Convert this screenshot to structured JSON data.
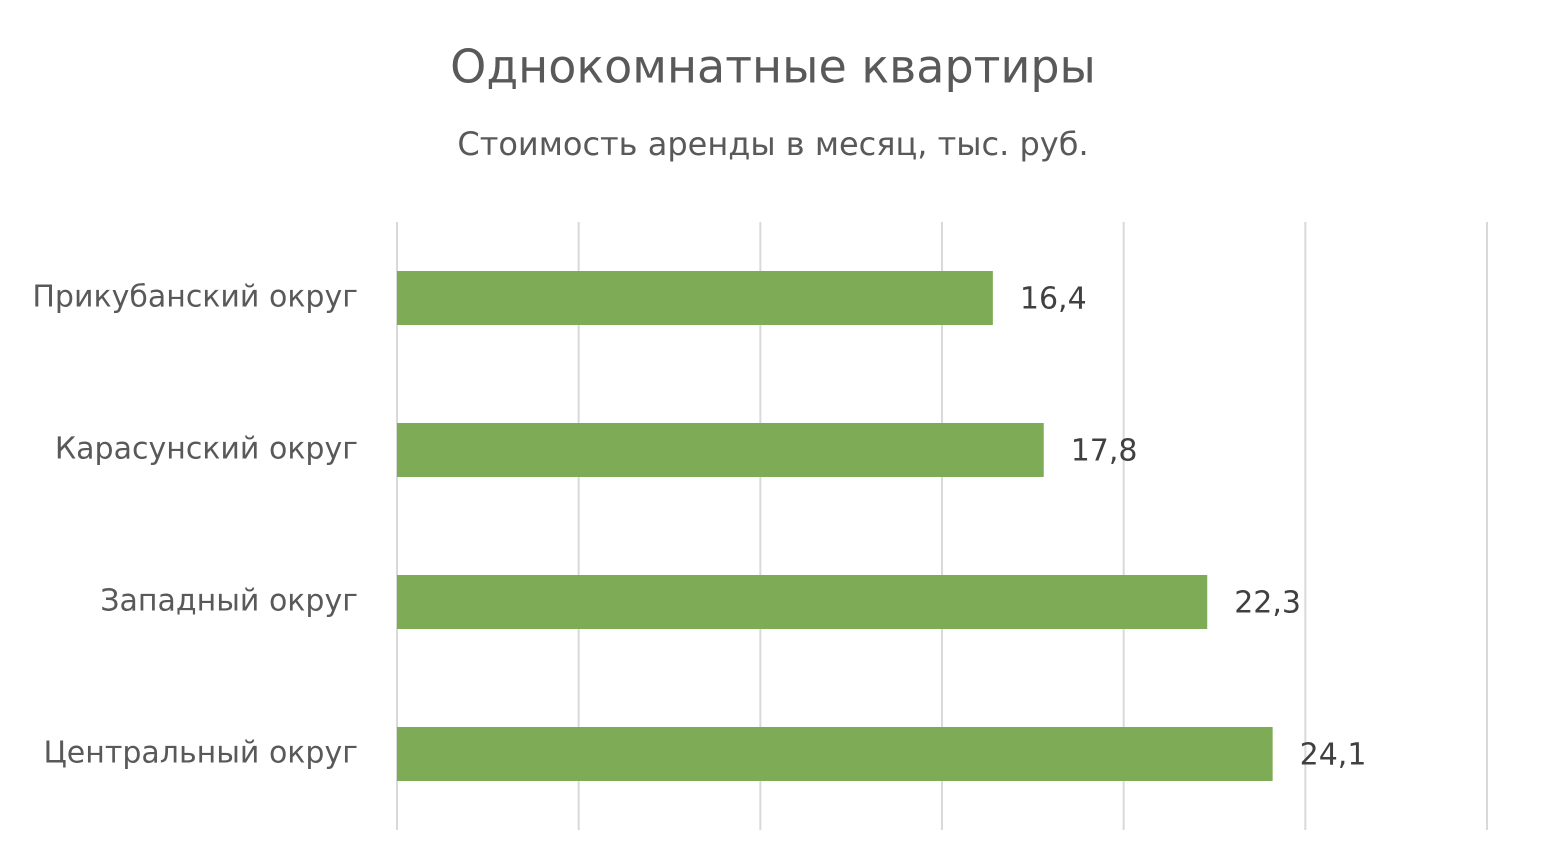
{
  "chart_data": {
    "type": "bar",
    "orientation": "horizontal",
    "title": "Однокомнатные квартиры",
    "subtitle": "Стоимость аренды в месяц, тыс. руб.",
    "categories": [
      "Прикубанский округ",
      "Карасунский округ",
      "Западный округ",
      "Центральный округ"
    ],
    "values": [
      16.4,
      17.8,
      22.3,
      24.1
    ],
    "value_labels": [
      "16,4",
      "17,8",
      "22,3",
      "24,1"
    ],
    "color": "#7eab55",
    "xlim": [
      0,
      30
    ],
    "xticks": [
      0,
      5,
      10,
      15,
      20,
      25,
      30
    ],
    "grid": true
  }
}
